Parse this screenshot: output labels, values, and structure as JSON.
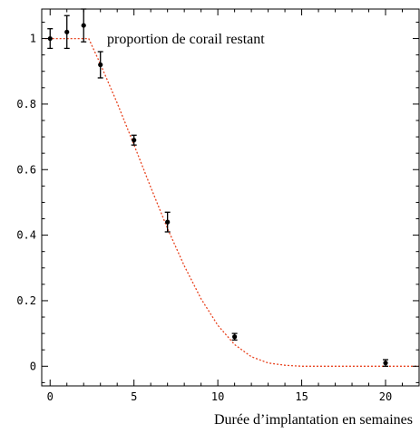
{
  "chart_data": {
    "type": "scatter",
    "title": "",
    "xlabel": "Durée d’implantation en semaines",
    "ylabel": "",
    "annotation": "proportion  de corail restant",
    "xlim": [
      -0.5,
      22
    ],
    "ylim": [
      -0.06,
      1.09
    ],
    "x_ticks": [
      0,
      5,
      10,
      15,
      20
    ],
    "y_ticks": [
      0,
      0.2,
      0.4,
      0.6,
      0.8,
      1
    ],
    "x_tick_labels": [
      "0",
      "5",
      "10",
      "15",
      "20"
    ],
    "y_tick_labels": [
      "0",
      "0.2",
      "0.4",
      "0.6",
      "0.8",
      "1"
    ],
    "grid": false,
    "series": [
      {
        "kind": "points-with-errorbars",
        "color": "#000000",
        "points": [
          {
            "x": 0,
            "y": 1.0,
            "err": 0.03
          },
          {
            "x": 1,
            "y": 1.02,
            "err": 0.05
          },
          {
            "x": 2,
            "y": 1.04,
            "err": 0.05
          },
          {
            "x": 3,
            "y": 0.92,
            "err": 0.04
          },
          {
            "x": 5,
            "y": 0.69,
            "err": 0.015
          },
          {
            "x": 7,
            "y": 0.44,
            "err": 0.03
          },
          {
            "x": 11,
            "y": 0.09,
            "err": 0.01
          },
          {
            "x": 20,
            "y": 0.01,
            "err": 0.01
          }
        ]
      },
      {
        "kind": "fit-curve",
        "style": "dashed",
        "color": "#e8431f",
        "points": [
          {
            "x": -0.3,
            "y": 1.0
          },
          {
            "x": 2.3,
            "y": 1.0
          },
          {
            "x": 3,
            "y": 0.922
          },
          {
            "x": 4,
            "y": 0.803
          },
          {
            "x": 5,
            "y": 0.676
          },
          {
            "x": 6,
            "y": 0.546
          },
          {
            "x": 7,
            "y": 0.42
          },
          {
            "x": 8,
            "y": 0.306
          },
          {
            "x": 9,
            "y": 0.206
          },
          {
            "x": 10,
            "y": 0.125
          },
          {
            "x": 11,
            "y": 0.066
          },
          {
            "x": 12,
            "y": 0.029
          },
          {
            "x": 13,
            "y": 0.01
          },
          {
            "x": 14,
            "y": 0.003
          },
          {
            "x": 15,
            "y": 0.0
          },
          {
            "x": 22,
            "y": 0.0
          }
        ]
      }
    ]
  }
}
